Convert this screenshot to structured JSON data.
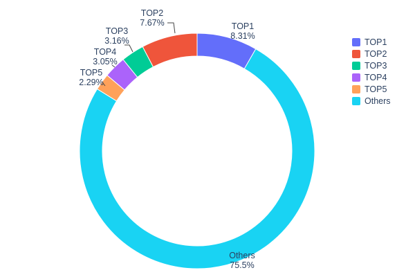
{
  "chart_data": {
    "type": "pie",
    "subtype": "donut",
    "hole": 0.8,
    "title": "",
    "labels": [
      "TOP1",
      "TOP2",
      "TOP3",
      "TOP4",
      "TOP5",
      "Others"
    ],
    "values": [
      8.31,
      7.67,
      3.16,
      3.05,
      2.29,
      75.5
    ],
    "percent_labels": [
      "8.31%",
      "7.67%",
      "3.16%",
      "3.05%",
      "2.29%",
      "75.5%"
    ],
    "colors": [
      "#636efa",
      "#ef553b",
      "#00cc96",
      "#ab63fa",
      "#ffa15a",
      "#19d3f3"
    ],
    "text_color": "#2a3f5f",
    "leader_color": "#444444",
    "legend": {
      "position": "right",
      "entries": [
        "TOP1",
        "TOP2",
        "TOP3",
        "TOP4",
        "TOP5",
        "Others"
      ]
    },
    "layout_hints": {
      "center": [
        285,
        218
      ],
      "outer_radius": 170,
      "inner_radius": 137,
      "clockwise_order": [
        0,
        5,
        4,
        3,
        2,
        1
      ],
      "label_positions": {
        "TOP1": [
          351,
          42,
          56
        ],
        "TOP2": [
          220,
          23,
          37
        ],
        "TOP3": [
          169,
          49,
          63
        ],
        "TOP4": [
          152,
          79,
          93
        ],
        "TOP5": [
          132,
          109,
          123
        ],
        "Others": [
          350,
          373,
          387
        ]
      },
      "leader_lines": [
        {
          "label": "TOP2",
          "points": [
            [
              242,
              33
            ],
            [
              251,
              33
            ],
            [
              253,
              48
            ]
          ]
        },
        {
          "label": "TOP3",
          "points": [
            [
              180,
              65
            ],
            [
              187,
              65
            ],
            [
              192,
              75
            ]
          ]
        },
        {
          "label": "TOP4",
          "points": [
            [
              162,
              94
            ],
            [
              166,
              97
            ]
          ]
        },
        {
          "label": "TOP5",
          "points": [
            [
              152,
              124
            ],
            [
              148,
              119
            ]
          ]
        }
      ]
    }
  }
}
